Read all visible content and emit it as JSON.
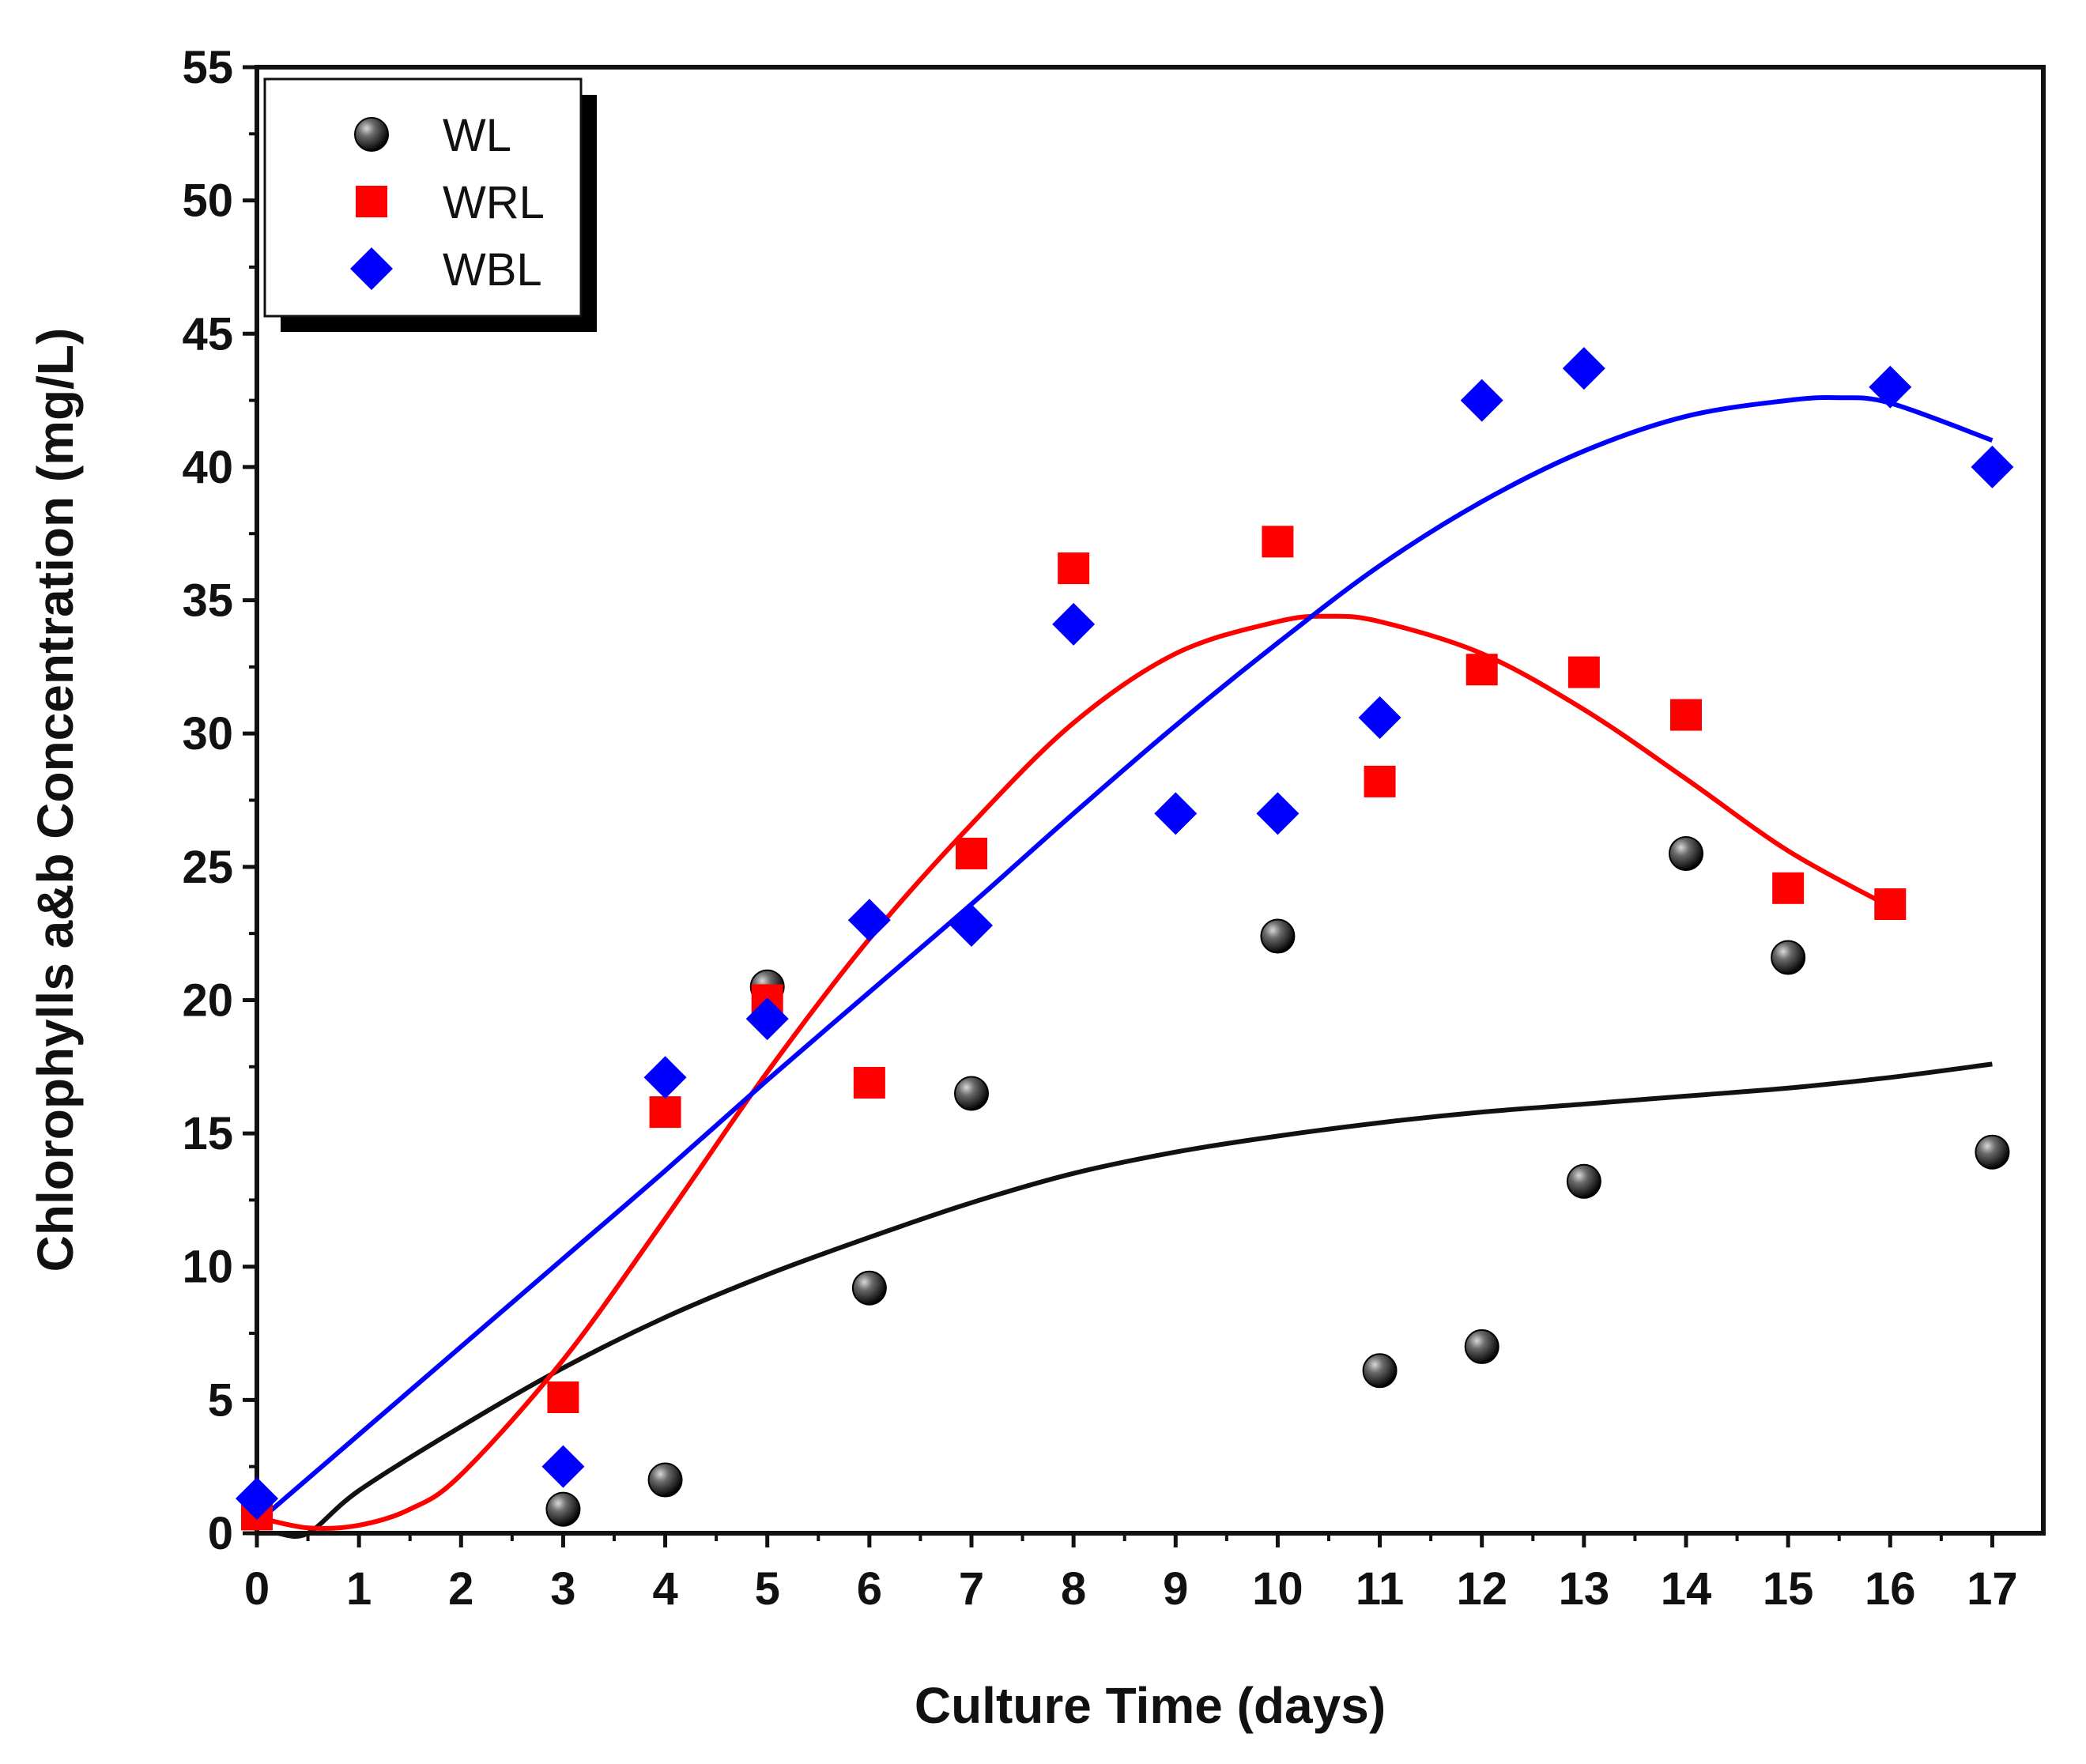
{
  "chart_data": {
    "type": "scatter",
    "xlabel": "Culture Time (days)",
    "ylabel": "Chlorophylls a&b Concentration (mg/L)",
    "xlim": [
      0,
      17.5
    ],
    "ylim": [
      0,
      55
    ],
    "x_ticks": [
      "0",
      "1",
      "2",
      "3",
      "4",
      "5",
      "6",
      "7",
      "8",
      "9",
      "10",
      "11",
      "12",
      "13",
      "14",
      "15",
      "16",
      "17"
    ],
    "y_ticks": [
      "0",
      "5",
      "10",
      "15",
      "20",
      "25",
      "30",
      "35",
      "40",
      "45",
      "50",
      "55"
    ],
    "legend_position": "top-left",
    "grid": false,
    "series": [
      {
        "name": "WL",
        "marker": "sphere",
        "color": "#111111",
        "points": [
          [
            3,
            0.9
          ],
          [
            4,
            2.0
          ],
          [
            5,
            20.5
          ],
          [
            6,
            9.2
          ],
          [
            7,
            16.5
          ],
          [
            10,
            22.4
          ],
          [
            11,
            6.1
          ],
          [
            12,
            7.0
          ],
          [
            13,
            13.2
          ],
          [
            14,
            25.5
          ],
          [
            15,
            21.6
          ],
          [
            17,
            14.3
          ]
        ],
        "fit": [
          [
            0.2,
            0
          ],
          [
            0.5,
            0
          ],
          [
            1,
            1.6
          ],
          [
            2,
            4.0
          ],
          [
            3,
            6.2
          ],
          [
            4,
            8.1
          ],
          [
            5,
            9.7
          ],
          [
            6,
            11.1
          ],
          [
            7,
            12.4
          ],
          [
            8,
            13.5
          ],
          [
            9,
            14.3
          ],
          [
            10,
            14.9
          ],
          [
            11,
            15.4
          ],
          [
            12,
            15.8
          ],
          [
            13,
            16.1
          ],
          [
            14,
            16.4
          ],
          [
            15,
            16.7
          ],
          [
            16,
            17.1
          ],
          [
            17,
            17.6
          ]
        ]
      },
      {
        "name": "WRL",
        "marker": "square",
        "color": "#ff0000",
        "points": [
          [
            0,
            0.7
          ],
          [
            3,
            5.1
          ],
          [
            4,
            15.8
          ],
          [
            5,
            20.0
          ],
          [
            6,
            16.9
          ],
          [
            7,
            25.5
          ],
          [
            8,
            36.2
          ],
          [
            10,
            37.2
          ],
          [
            11,
            28.2
          ],
          [
            12,
            32.4
          ],
          [
            13,
            32.3
          ],
          [
            14,
            30.7
          ],
          [
            15,
            24.2
          ],
          [
            16,
            23.6
          ]
        ],
        "fit": [
          [
            0,
            0.6
          ],
          [
            0.5,
            0.2
          ],
          [
            1,
            0.3
          ],
          [
            1.5,
            0.9
          ],
          [
            2,
            2.2
          ],
          [
            3,
            6.5
          ],
          [
            4,
            11.8
          ],
          [
            5,
            17.3
          ],
          [
            6,
            22.3
          ],
          [
            7,
            26.6
          ],
          [
            8,
            30.4
          ],
          [
            9,
            33.0
          ],
          [
            10,
            34.2
          ],
          [
            10.5,
            34.4
          ],
          [
            11,
            34.2
          ],
          [
            12,
            33.0
          ],
          [
            13,
            30.9
          ],
          [
            14,
            28.3
          ],
          [
            15,
            25.6
          ],
          [
            16,
            23.5
          ]
        ]
      },
      {
        "name": "WBL",
        "marker": "diamond",
        "color": "#0000ff",
        "points": [
          [
            0,
            1.3
          ],
          [
            3,
            2.5
          ],
          [
            4,
            17.1
          ],
          [
            5,
            19.3
          ],
          [
            6,
            23.0
          ],
          [
            7,
            22.8
          ],
          [
            8,
            34.1
          ],
          [
            9,
            27.0
          ],
          [
            10,
            27.0
          ],
          [
            11,
            30.6
          ],
          [
            12,
            42.5
          ],
          [
            13,
            43.7
          ],
          [
            16,
            43.0
          ],
          [
            17,
            40.0
          ]
        ],
        "fit": [
          [
            0,
            0.4
          ],
          [
            1,
            3.7
          ],
          [
            2,
            7.0
          ],
          [
            3,
            10.3
          ],
          [
            4,
            13.6
          ],
          [
            5,
            17.0
          ],
          [
            6,
            20.3
          ],
          [
            7,
            23.6
          ],
          [
            8,
            27.0
          ],
          [
            9,
            30.3
          ],
          [
            10,
            33.4
          ],
          [
            11,
            36.3
          ],
          [
            12,
            38.7
          ],
          [
            13,
            40.6
          ],
          [
            14,
            41.9
          ],
          [
            15,
            42.5
          ],
          [
            15.5,
            42.6
          ],
          [
            16,
            42.4
          ],
          [
            17,
            41.0
          ]
        ]
      }
    ]
  }
}
